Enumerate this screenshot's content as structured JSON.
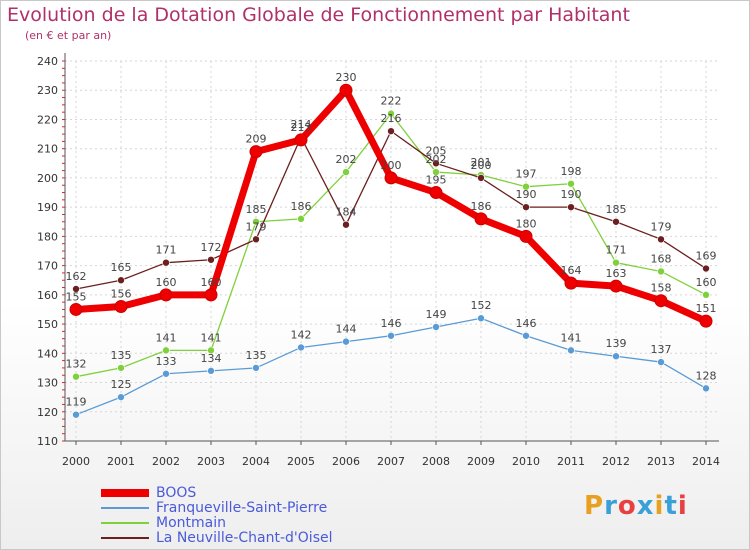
{
  "title": "Evolution de la Dotation Globale de Fonctionnement par Habitant",
  "subtitle": "(en € et par an)",
  "logo": {
    "text": "Proxiti",
    "colors": [
      "#e8a020",
      "#3aa0d8",
      "#e84040",
      "#3aa0d8",
      "#e8a020",
      "#3aa0d8",
      "#e84040"
    ]
  },
  "chart_data": {
    "type": "line",
    "title": "Evolution de la Dotation Globale de Fonctionnement par Habitant",
    "subtitle": "(en € et par an)",
    "xlabel": "",
    "ylabel": "",
    "ylim": [
      110,
      240
    ],
    "yticks": [
      110,
      120,
      130,
      140,
      150,
      160,
      170,
      180,
      190,
      200,
      210,
      220,
      230,
      240
    ],
    "grid": true,
    "legend_position": "bottom",
    "x": [
      "2000",
      "2001",
      "2002",
      "2003",
      "2004",
      "2005",
      "2006",
      "2007",
      "2008",
      "2009",
      "2010",
      "2011",
      "2012",
      "2013",
      "2014"
    ],
    "series": [
      {
        "name": "BOOS",
        "color": "#ee0000",
        "values": [
          155,
          156,
          160,
          160,
          209,
          213,
          230,
          200,
          195,
          186,
          180,
          164,
          163,
          158,
          151
        ]
      },
      {
        "name": "Franqueville-Saint-Pierre",
        "color": "#5b9bd5",
        "values": [
          119,
          125,
          133,
          134,
          135,
          142,
          144,
          146,
          149,
          152,
          146,
          141,
          139,
          137,
          128
        ]
      },
      {
        "name": "Montmain",
        "color": "#7fd13b",
        "values": [
          132,
          135,
          141,
          141,
          185,
          186,
          202,
          222,
          202,
          201,
          197,
          198,
          171,
          168,
          160
        ]
      },
      {
        "name": "La Neuville-Chant-d'Oisel",
        "color": "#6b1f1f",
        "values": [
          162,
          165,
          171,
          172,
          179,
          214,
          184,
          216,
          205,
          200,
          190,
          190,
          185,
          179,
          169
        ]
      }
    ]
  }
}
